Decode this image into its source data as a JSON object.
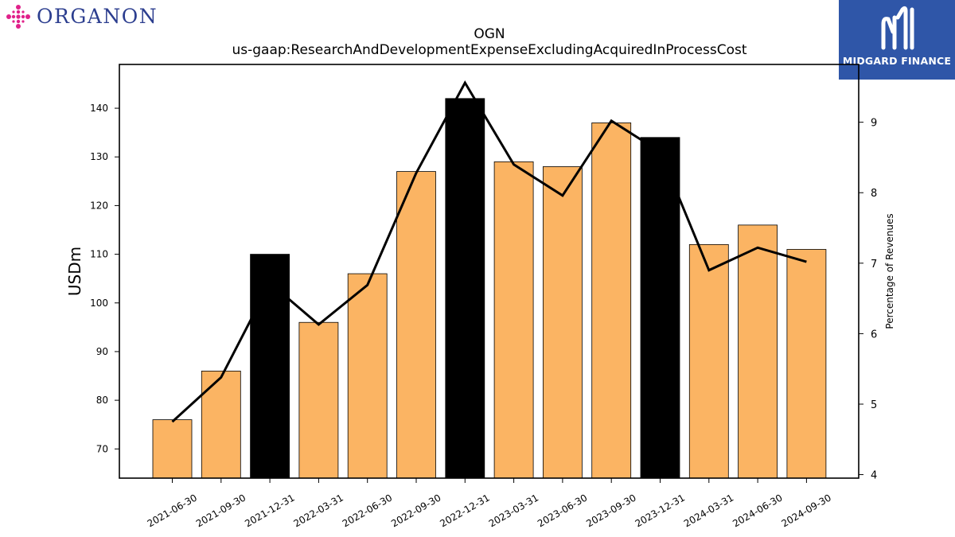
{
  "branding": {
    "left_logo_text": "ORGANON",
    "left_logo_color": "#2c3e8f",
    "left_mark_color": "#e0218a",
    "right_logo_text": "MIDGARD FINANCE",
    "right_logo_bg": "#2f56a8"
  },
  "chart_data": {
    "type": "bar",
    "title": "OGN",
    "subtitle": "us-gaap:ResearchAndDevelopmentExpenseExcludingAcquiredInProcessCost",
    "ylabel": "USDm",
    "y2label": "Percentage of Revenues",
    "categories": [
      "2021-06-30",
      "2021-09-30",
      "2021-12-31",
      "2022-03-31",
      "2022-06-30",
      "2022-09-30",
      "2022-12-31",
      "2023-03-31",
      "2023-06-30",
      "2023-09-30",
      "2023-12-31",
      "2024-03-31",
      "2024-06-30",
      "2024-09-30"
    ],
    "values": [
      76,
      86,
      110,
      96,
      106,
      127,
      142,
      129,
      128,
      137,
      134,
      112,
      116,
      111
    ],
    "bar_colors": [
      "#fbb463",
      "#fbb463",
      "#000000",
      "#fbb463",
      "#fbb463",
      "#fbb463",
      "#000000",
      "#fbb463",
      "#fbb463",
      "#fbb463",
      "#000000",
      "#fbb463",
      "#fbb463",
      "#fbb463"
    ],
    "line_series": {
      "axis": "right",
      "color": "#000000",
      "values": [
        4.75,
        5.38,
        6.72,
        6.13,
        6.69,
        8.28,
        9.56,
        8.4,
        7.96,
        9.02,
        8.58,
        6.9,
        7.22,
        7.02
      ]
    },
    "ylim": [
      64,
      149
    ],
    "y2lim": [
      3.95,
      9.82
    ],
    "yticks": [
      70,
      80,
      90,
      100,
      110,
      120,
      130,
      140
    ],
    "y2ticks": [
      4,
      5,
      6,
      7,
      8,
      9
    ],
    "grid": false,
    "legend": "none"
  }
}
